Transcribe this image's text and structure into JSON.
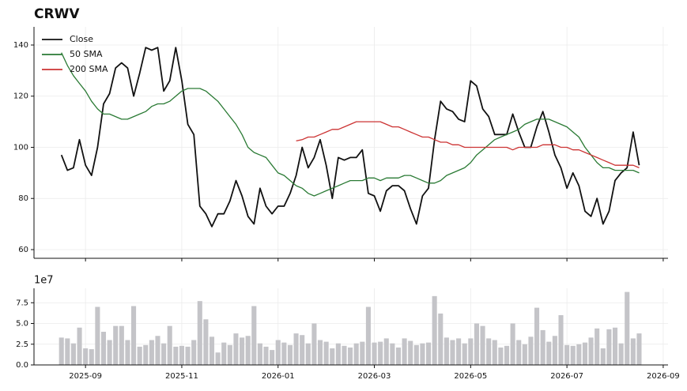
{
  "chart_data": [
    {
      "type": "line",
      "title": "CRWV",
      "x": [
        7.5,
        7.625,
        7.75,
        7.875,
        8,
        8.125,
        8.25,
        8.375,
        8.5,
        8.625,
        8.75,
        8.875,
        9,
        9.125,
        9.25,
        9.375,
        9.5,
        9.625,
        9.75,
        9.875,
        10,
        10.125,
        10.25,
        10.375,
        10.5,
        10.625,
        10.75,
        10.875,
        11,
        11.125,
        11.25,
        11.375,
        11.5,
        11.625,
        11.75,
        11.875,
        12,
        12.125,
        12.25,
        12.375,
        12.5,
        12.625,
        12.75,
        12.875,
        13,
        13.125,
        13.25,
        13.375,
        13.5,
        13.625,
        13.75,
        13.875,
        14,
        14.125,
        14.25,
        14.375,
        14.5,
        14.625,
        14.75,
        14.875,
        15,
        15.125,
        15.25,
        15.375,
        15.5,
        15.625,
        15.75,
        15.875,
        16,
        16.125,
        16.25,
        16.375,
        16.5,
        16.625,
        16.75,
        16.875,
        17,
        17.125,
        17.25,
        17.375,
        17.5,
        17.625,
        17.75,
        17.875,
        18,
        18.125,
        18.25,
        18.375,
        18.5,
        18.625,
        18.75,
        18.875,
        19,
        19.125,
        19.25,
        19.375,
        19.5
      ],
      "series": [
        {
          "name": "Close",
          "color": "#111111",
          "values": [
            97,
            91,
            92,
            103,
            93,
            89,
            100,
            117,
            121,
            131,
            133,
            131,
            120,
            129,
            139,
            138,
            139,
            122,
            126,
            139,
            126,
            109,
            105,
            77,
            74,
            69,
            74,
            74,
            79,
            87,
            81,
            73,
            70,
            84,
            77,
            74,
            77,
            77,
            82,
            89,
            100,
            92,
            96,
            103,
            93,
            80,
            96,
            95,
            96,
            96,
            99,
            82,
            81,
            75,
            83,
            85,
            85,
            83,
            76,
            70,
            81,
            84,
            103,
            118,
            115,
            114,
            111,
            110,
            126,
            124,
            115,
            112,
            105,
            105,
            105,
            113,
            106,
            100,
            100,
            108,
            114,
            106,
            97,
            92,
            84,
            90,
            85,
            75,
            73,
            80,
            70,
            75,
            87,
            90,
            92,
            106,
            93
          ]
        },
        {
          "name": "50 SMA",
          "color": "#2a7a34",
          "values": [
            137,
            132,
            128,
            125,
            122,
            118,
            115,
            113,
            113,
            112,
            111,
            111,
            112,
            113,
            114,
            116,
            117,
            117,
            118,
            120,
            122,
            123,
            123,
            123,
            122,
            120,
            118,
            115,
            112,
            109,
            105,
            100,
            98,
            97,
            96,
            93,
            90,
            89,
            87,
            85,
            84,
            82,
            81,
            82,
            83,
            84,
            85,
            86,
            87,
            87,
            87,
            88,
            88,
            87,
            88,
            88,
            88,
            89,
            89,
            88,
            87,
            86,
            86,
            87,
            89,
            90,
            91,
            92,
            94,
            97,
            99,
            101,
            103,
            104,
            105,
            106,
            107,
            109,
            110,
            111,
            111,
            111,
            110,
            109,
            108,
            106,
            104,
            100,
            97,
            94,
            92,
            92,
            91,
            91,
            91,
            91,
            90
          ]
        },
        {
          "name": "200 SMA",
          "color": "#cc3333",
          "values": [
            null,
            null,
            null,
            null,
            null,
            null,
            null,
            null,
            null,
            null,
            null,
            null,
            null,
            null,
            null,
            null,
            null,
            null,
            null,
            null,
            null,
            null,
            null,
            null,
            null,
            null,
            null,
            null,
            null,
            null,
            null,
            null,
            null,
            null,
            null,
            null,
            null,
            null,
            null,
            102.5,
            103,
            104,
            104,
            105,
            106,
            107,
            107,
            108,
            109,
            110,
            110,
            110,
            110,
            110,
            109,
            108,
            108,
            107,
            106,
            105,
            104,
            104,
            103,
            102,
            102,
            101,
            101,
            100,
            100,
            100,
            100,
            100,
            100,
            100,
            100,
            99,
            100,
            100,
            100,
            100,
            101,
            101,
            101,
            100,
            100,
            99,
            99,
            98,
            97,
            96,
            95,
            94,
            93,
            93,
            93,
            93,
            92
          ]
        }
      ],
      "xlim": [
        6.93,
        20.1
      ],
      "ylim": [
        56.6,
        147.1
      ],
      "yticks": [
        60,
        80,
        100,
        120,
        140
      ],
      "grid": true,
      "legend": "upper left"
    },
    {
      "type": "bar",
      "offset_label": "1e7",
      "x": [
        7.5,
        7.625,
        7.75,
        7.875,
        8,
        8.125,
        8.25,
        8.375,
        8.5,
        8.625,
        8.75,
        8.875,
        9,
        9.125,
        9.25,
        9.375,
        9.5,
        9.625,
        9.75,
        9.875,
        10,
        10.125,
        10.25,
        10.375,
        10.5,
        10.625,
        10.75,
        10.875,
        11,
        11.125,
        11.25,
        11.375,
        11.5,
        11.625,
        11.75,
        11.875,
        12,
        12.125,
        12.25,
        12.375,
        12.5,
        12.625,
        12.75,
        12.875,
        13,
        13.125,
        13.25,
        13.375,
        13.5,
        13.625,
        13.75,
        13.875,
        14,
        14.125,
        14.25,
        14.375,
        14.5,
        14.625,
        14.75,
        14.875,
        15,
        15.125,
        15.25,
        15.375,
        15.5,
        15.625,
        15.75,
        15.875,
        16,
        16.125,
        16.25,
        16.375,
        16.5,
        16.625,
        16.75,
        16.875,
        17,
        17.125,
        17.25,
        17.375,
        17.5,
        17.625,
        17.75,
        17.875,
        18,
        18.125,
        18.25,
        18.375,
        18.5,
        18.625,
        18.75,
        18.875,
        19,
        19.125,
        19.25,
        19.375,
        19.5
      ],
      "values": [
        3.3,
        3.2,
        2.6,
        4.5,
        2.0,
        1.9,
        7.0,
        4.0,
        3.0,
        4.7,
        4.7,
        3.0,
        7.1,
        2.2,
        2.4,
        3.0,
        3.5,
        2.6,
        4.7,
        2.2,
        2.3,
        2.2,
        3.0,
        7.7,
        5.5,
        3.4,
        1.5,
        2.7,
        2.4,
        3.8,
        3.3,
        3.5,
        7.1,
        2.6,
        2.2,
        1.8,
        3.0,
        2.7,
        2.4,
        3.8,
        3.6,
        2.6,
        5.0,
        3.0,
        2.8,
        2.0,
        2.6,
        2.3,
        2.1,
        2.6,
        2.8,
        7.0,
        2.7,
        2.8,
        3.2,
        2.6,
        2.1,
        3.2,
        2.9,
        2.4,
        2.6,
        2.7,
        8.3,
        6.2,
        3.3,
        3.0,
        3.2,
        2.6,
        3.2,
        5.0,
        4.7,
        3.2,
        3.0,
        2.1,
        2.3,
        5.0,
        3.0,
        2.5,
        3.4,
        6.9,
        4.2,
        2.8,
        3.5,
        6.0,
        2.4,
        2.3,
        2.5,
        2.7,
        3.3,
        4.4,
        2.0,
        4.3,
        4.5,
        2.6,
        8.8,
        3.2,
        3.8
      ],
      "color": "#c4c4c8",
      "xlim": [
        6.93,
        20.1
      ],
      "xticks": [
        {
          "value": 8,
          "label": "2025-09"
        },
        {
          "value": 10,
          "label": "2025-11"
        },
        {
          "value": 12,
          "label": "2026-01"
        },
        {
          "value": 14,
          "label": "2026-03"
        },
        {
          "value": 16,
          "label": "2026-05"
        },
        {
          "value": 18,
          "label": "2026-07"
        },
        {
          "value": 20,
          "label": "2026-09"
        }
      ],
      "ylim": [
        0,
        9.24
      ],
      "yticks": [
        {
          "value": 0,
          "label": "0.0"
        },
        2.5,
        {
          "value": 5,
          "label": "5.0"
        },
        {
          "value": 7.5,
          "label": "7.5"
        }
      ],
      "grid": true
    }
  ]
}
